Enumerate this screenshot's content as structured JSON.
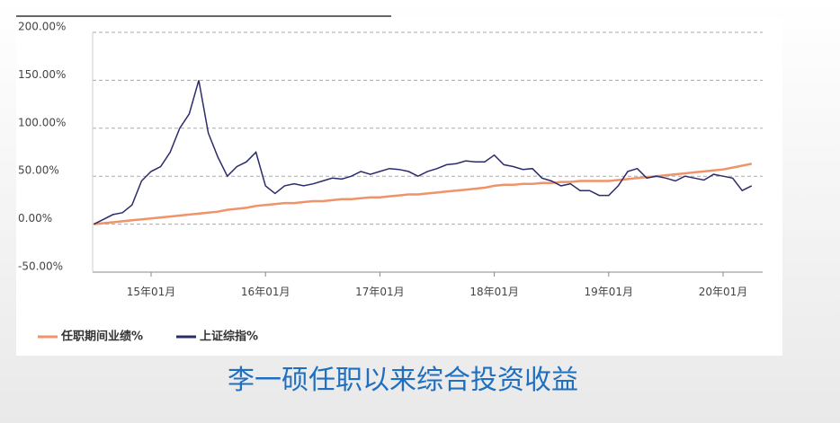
{
  "chart_data": {
    "type": "line",
    "title": "李一硕任职以来综合投资收益",
    "x": [
      "14年07月",
      "14年08月",
      "14年09月",
      "14年10月",
      "14年11月",
      "14年12月",
      "15年01月",
      "15年02月",
      "15年03月",
      "15年04月",
      "15年05月",
      "15年06月",
      "15年07月",
      "15年08月",
      "15年09月",
      "15年10月",
      "15年11月",
      "15年12月",
      "16年01月",
      "16年02月",
      "16年03月",
      "16年04月",
      "16年05月",
      "16年06月",
      "16年07月",
      "16年08月",
      "16年09月",
      "16年10月",
      "16年11月",
      "16年12月",
      "17年01月",
      "17年02月",
      "17年03月",
      "17年04月",
      "17年05月",
      "17年06月",
      "17年07月",
      "17年08月",
      "17年09月",
      "17年10月",
      "17年11月",
      "17年12月",
      "18年01月",
      "18年02月",
      "18年03月",
      "18年04月",
      "18年05月",
      "18年06月",
      "18年07月",
      "18年08月",
      "18年09月",
      "18年10月",
      "18年11月",
      "18年12月",
      "19年01月",
      "19年02月",
      "19年03月",
      "19年04月",
      "19年05月",
      "19年06月",
      "19年07月",
      "19年08月",
      "19年09月",
      "19年10月",
      "19年11月",
      "19年12月",
      "20年01月",
      "20年02月",
      "20年03月",
      "20年04月"
    ],
    "series": [
      {
        "name": "任职期间业绩%",
        "color": "#f0936a",
        "values": [
          0,
          1,
          2,
          3,
          4,
          5,
          6,
          7,
          8,
          9,
          10,
          11,
          12,
          13,
          15,
          16,
          17,
          19,
          20,
          21,
          22,
          22,
          23,
          24,
          24,
          25,
          26,
          26,
          27,
          28,
          28,
          29,
          30,
          31,
          31,
          32,
          33,
          34,
          35,
          36,
          37,
          38,
          40,
          41,
          41,
          42,
          42,
          43,
          43,
          44,
          44,
          45,
          45,
          45,
          45,
          46,
          47,
          48,
          49,
          50,
          51,
          52,
          53,
          54,
          55,
          56,
          57,
          59,
          61,
          63
        ]
      },
      {
        "name": "上证综指%",
        "color": "#2b2b6b",
        "values": [
          0,
          5,
          10,
          12,
          20,
          45,
          55,
          60,
          75,
          100,
          115,
          150,
          95,
          70,
          50,
          60,
          65,
          75,
          40,
          32,
          40,
          42,
          40,
          42,
          45,
          48,
          47,
          50,
          55,
          52,
          55,
          58,
          57,
          55,
          50,
          55,
          58,
          62,
          63,
          66,
          65,
          65,
          72,
          62,
          60,
          57,
          58,
          48,
          45,
          40,
          42,
          35,
          35,
          30,
          30,
          40,
          55,
          58,
          48,
          50,
          48,
          45,
          50,
          48,
          46,
          52,
          50,
          48,
          35,
          40
        ]
      }
    ],
    "ylim": [
      -50,
      200
    ],
    "yticks": [
      {
        "value": -50,
        "label": "-50.00%"
      },
      {
        "value": 0,
        "label": "0.00%"
      },
      {
        "value": 50,
        "label": "50.00%"
      },
      {
        "value": 100,
        "label": "100.00%"
      },
      {
        "value": 150,
        "label": "150.00%"
      },
      {
        "value": 200,
        "label": "200.00%"
      }
    ],
    "xticks": [
      "15年01月",
      "16年01月",
      "17年01月",
      "18年01月",
      "19年01月",
      "20年01月"
    ],
    "grid": true
  }
}
